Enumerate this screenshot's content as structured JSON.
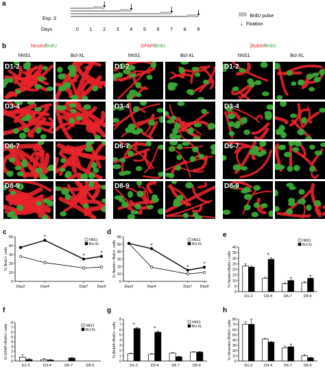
{
  "panel_a": {
    "letter": "a",
    "exp_label": "Exp. 3",
    "days_label": "Days",
    "days": [
      "0",
      "1",
      "2",
      "3",
      "4",
      "5",
      "6",
      "7",
      "8",
      "9"
    ],
    "legend_pulse": "BrdU pulse",
    "legend_fixation": "Fixation"
  },
  "panel_b": {
    "letter": "b",
    "groups": [
      {
        "stain_parts": [
          {
            "t": "Nestin",
            "c": "red"
          },
          {
            "t": "/",
            "c": "black"
          },
          {
            "t": "BrdU",
            "c": "green"
          }
        ],
        "col1": "hNS1",
        "col2": "Bcl-XL"
      },
      {
        "stain_parts": [
          {
            "t": "GFAP",
            "c": "red"
          },
          {
            "t": "/",
            "c": "black"
          },
          {
            "t": "BrdU",
            "c": "green"
          }
        ],
        "col1": "hNS1",
        "col2": "Bcl-XL"
      },
      {
        "stain_parts": [
          {
            "t": "βtubIII",
            "c": "red"
          },
          {
            "t": "/",
            "c": "black"
          },
          {
            "t": "BrdU",
            "c": "green"
          }
        ],
        "col1": "hNS1",
        "col2": "Bcl-XL"
      }
    ],
    "rows": [
      "D1-2",
      "D3-4",
      "D6-7",
      "D8-9"
    ]
  },
  "colors": {
    "red_stain": "#e8232b",
    "green_stain": "#3aa935",
    "black": "#000000",
    "white": "#ffffff"
  },
  "chart_data": [
    {
      "panel": "c",
      "type": "line",
      "ylabel": "% BrdU+ cells",
      "x": [
        "Day2",
        "Day4",
        "Day7",
        "Day9"
      ],
      "ylim": [
        0,
        50
      ],
      "yticks": [
        0,
        10,
        20,
        30,
        40,
        50
      ],
      "legend": [
        "hNS1",
        "Bcl-XL"
      ],
      "series": [
        {
          "name": "hNS1",
          "values": [
            28,
            21,
            15,
            16
          ]
        },
        {
          "name": "Bcl-XL",
          "values": [
            38,
            46,
            25,
            28
          ]
        }
      ],
      "stars": [
        "Day4",
        "Day7",
        "Day9"
      ]
    },
    {
      "panel": "d",
      "type": "line",
      "ylabel": "% Nestin+ BrdU+ cells",
      "x": [
        "Day2",
        "Day4",
        "Day7",
        "Day9"
      ],
      "ylim": [
        0,
        60
      ],
      "yticks": [
        0,
        10,
        20,
        30,
        40,
        50,
        60
      ],
      "legend": [
        "hNS1",
        "Bcl-XL"
      ],
      "series": [
        {
          "name": "hNS1",
          "values": [
            51,
            19,
            10,
            12
          ]
        },
        {
          "name": "Bcl-XL",
          "values": [
            51,
            44,
            15,
            19
          ]
        }
      ],
      "stars": [
        "Day4",
        "Day7",
        "Day9"
      ]
    },
    {
      "panel": "e",
      "type": "bar",
      "ylabel": "% Nestin+BrdU+ cells",
      "categories": [
        "D1-2",
        "D3-4",
        "D6-7",
        "D8-9"
      ],
      "ylim": [
        0,
        40
      ],
      "yticks": [
        0,
        5,
        10,
        15,
        20,
        25,
        30,
        35,
        40
      ],
      "legend": [
        "hNS1",
        "Bcl-XL"
      ],
      "series": [
        {
          "name": "hNS1",
          "values": [
            23,
            12,
            7,
            8
          ]
        },
        {
          "name": "Bcl-XL",
          "values": [
            22,
            29,
            10,
            12
          ]
        }
      ],
      "errors": [
        [
          2,
          1,
          1,
          1
        ],
        [
          1,
          1.5,
          2.5,
          2.5
        ]
      ],
      "stars": [
        "D3-4"
      ]
    },
    {
      "panel": "f",
      "type": "bar",
      "ylabel": "% GFAP+BrdU+ cells",
      "categories": [
        "D1-2",
        "D3-4",
        "D6-7",
        "D8-9"
      ],
      "ylim": [
        0,
        8
      ],
      "yticks": [
        0,
        1,
        2,
        3,
        4,
        5,
        6,
        7,
        8
      ],
      "legend": [
        "hNS1",
        "Bcl-XL"
      ],
      "series": [
        {
          "name": "hNS1",
          "values": [
            0.8,
            0.3,
            0,
            0
          ]
        },
        {
          "name": "Bcl-XL",
          "values": [
            0.3,
            0.2,
            0.6,
            0
          ]
        }
      ],
      "errors": [
        [
          0.5,
          0.2,
          0,
          0
        ],
        [
          0.2,
          0.1,
          0.1,
          0
        ]
      ],
      "stars": []
    },
    {
      "panel": "g",
      "type": "bar",
      "ylabel": "% βtubIII+BrdU+ cells",
      "categories": [
        "D1-2",
        "D3-4",
        "D6-7",
        "D8-9"
      ],
      "ylim": [
        0,
        8
      ],
      "yticks": [
        0,
        1,
        2,
        3,
        4,
        5,
        6,
        7,
        8
      ],
      "legend": [
        "hNS1",
        "Bcl-XL"
      ],
      "series": [
        {
          "name": "hNS1",
          "values": [
            1.4,
            1.3,
            1.5,
            1.7
          ]
        },
        {
          "name": "Bcl-XL",
          "values": [
            6.2,
            5.5,
            0.8,
            1.7
          ]
        }
      ],
      "errors": [
        [
          0.1,
          0.1,
          0.1,
          0.1
        ],
        [
          0.2,
          0.2,
          0.1,
          0.1
        ]
      ],
      "stars": [
        "D1-2",
        "D3-4"
      ]
    },
    {
      "panel": "h",
      "type": "bar",
      "ylabel": "% Vimentin+BrdU+ cells",
      "categories": [
        "D1-2",
        "D3-4",
        "D6-7",
        "D8-9"
      ],
      "ylim": [
        0,
        80
      ],
      "yticks": [
        0,
        10,
        20,
        30,
        40,
        50,
        60,
        70,
        80
      ],
      "legend": [],
      "series": [
        {
          "name": "",
          "values": [
            70,
            42,
            25,
            10
          ]
        },
        {
          "name": "",
          "values": [
            70,
            36,
            27,
            6
          ]
        }
      ],
      "errors": [
        [
          5,
          1,
          3,
          2
        ],
        [
          10,
          1,
          5,
          1
        ]
      ],
      "stars": []
    }
  ]
}
